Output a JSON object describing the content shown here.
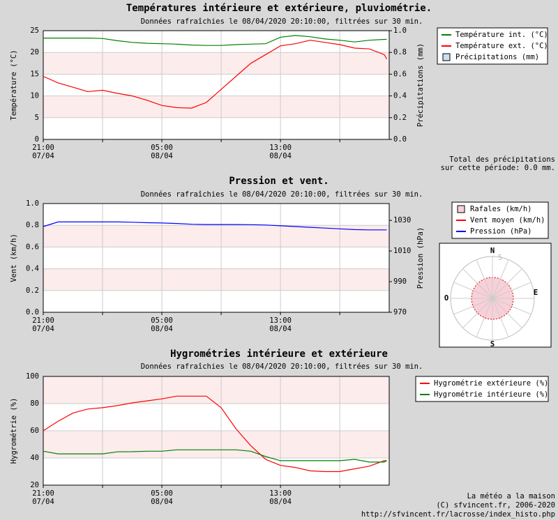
{
  "charts_page": {
    "precipitation_total": [
      "Total des précipitations",
      "sur cette période:   0.0 mm."
    ],
    "wind_rose": {
      "directions": [
        "N",
        "E",
        "S",
        "O"
      ],
      "ring_label": "5"
    },
    "footer": [
      "La météo a la maison",
      "(C) sfvincent.fr, 2006-2020",
      "http://sfvincent.fr/lacrosse/index_histo.php"
    ]
  },
  "chart_data": [
    {
      "type": "line",
      "title": "Températures intérieure et extérieure, pluviométrie.",
      "subtitle": "Données rafraîchies le 08/04/2020 20:10:00,  filtrées sur 30 min.",
      "ylabel": "Température (°C)",
      "y2label": "Précipitations (mm)",
      "x": [
        "07/04 21:00",
        "07/04 22:00",
        "07/04 23:00",
        "08/04 00:00",
        "08/04 01:00",
        "08/04 02:00",
        "08/04 03:00",
        "08/04 04:00",
        "08/04 05:00",
        "08/04 06:00",
        "08/04 07:00",
        "08/04 08:00",
        "08/04 09:00",
        "08/04 10:00",
        "08/04 11:00",
        "08/04 12:00",
        "08/04 13:00",
        "08/04 14:00",
        "08/04 15:00",
        "08/04 16:00",
        "08/04 17:00",
        "08/04 18:00",
        "08/04 19:00",
        "08/04 20:00",
        "08/04 20:10"
      ],
      "xlim": [
        "07/04 21:00",
        "08/04 20:20"
      ],
      "xticks": [
        {
          "value": "07/04 21:00",
          "label": "21:00",
          "date": "07/04"
        },
        {
          "value": "08/04 01:00"
        },
        {
          "value": "08/04 05:00",
          "label": "05:00",
          "date": "08/04"
        },
        {
          "value": "08/04 09:00"
        },
        {
          "value": "08/04 13:00",
          "label": "13:00",
          "date": "08/04"
        },
        {
          "value": "08/04 17:00"
        }
      ],
      "ylim": [
        0,
        25
      ],
      "yticks": [
        0,
        5,
        10,
        15,
        20,
        25
      ],
      "y2lim": [
        0,
        1
      ],
      "y2ticks": [
        {
          "value": 0,
          "label": "0.0"
        },
        0.2,
        0.4,
        0.6,
        0.8,
        {
          "value": 1,
          "label": "1.0"
        }
      ],
      "grid": true,
      "series": [
        {
          "name": "Température int. (°C)",
          "color": "#008000",
          "values": [
            23.3,
            23.3,
            23.3,
            23.3,
            23.2,
            22.7,
            22.3,
            22.1,
            22.0,
            21.9,
            21.7,
            21.6,
            21.6,
            21.8,
            21.9,
            22.0,
            23.5,
            23.9,
            23.6,
            23.1,
            22.8,
            22.4,
            22.8,
            23.0,
            23.0
          ]
        },
        {
          "name": "Température ext. (°C)",
          "color": "#ff0000",
          "values": [
            14.5,
            13,
            12,
            11,
            11.3,
            10.6,
            10,
            9,
            7.8,
            7.3,
            7.2,
            8.5,
            11.5,
            14.5,
            17.5,
            19.5,
            21.5,
            22,
            22.8,
            22.3,
            21.8,
            21,
            20.8,
            19.5,
            18.5
          ]
        },
        {
          "name": "Précipitations (mm)",
          "color": "#c8e0f0",
          "kind": "box",
          "axis": "y2"
        }
      ]
    },
    {
      "type": "line",
      "title": "Pression et vent.",
      "subtitle": "Données rafraîchies le 08/04/2020 20:10:00,  filtrées sur 30 min.",
      "ylabel": "Vent (km/h)",
      "y2label": "Pression (hPa)",
      "x": [
        "07/04 21:00",
        "07/04 22:00",
        "07/04 23:00",
        "08/04 00:00",
        "08/04 01:00",
        "08/04 02:00",
        "08/04 03:00",
        "08/04 04:00",
        "08/04 05:00",
        "08/04 06:00",
        "08/04 07:00",
        "08/04 08:00",
        "08/04 09:00",
        "08/04 10:00",
        "08/04 11:00",
        "08/04 12:00",
        "08/04 13:00",
        "08/04 14:00",
        "08/04 15:00",
        "08/04 16:00",
        "08/04 17:00",
        "08/04 18:00",
        "08/04 19:00",
        "08/04 20:00",
        "08/04 20:10"
      ],
      "xlim": [
        "07/04 21:00",
        "08/04 20:20"
      ],
      "xticks": [
        {
          "value": "07/04 21:00",
          "label": "21:00",
          "date": "07/04"
        },
        {
          "value": "08/04 01:00"
        },
        {
          "value": "08/04 05:00",
          "label": "05:00",
          "date": "08/04"
        },
        {
          "value": "08/04 09:00"
        },
        {
          "value": "08/04 13:00",
          "label": "13:00",
          "date": "08/04"
        },
        {
          "value": "08/04 17:00"
        }
      ],
      "ylim": [
        0,
        1
      ],
      "yticks": [
        {
          "value": 0,
          "label": "0.0"
        },
        0.2,
        0.4,
        0.6,
        0.8,
        {
          "value": 1,
          "label": "1.0"
        }
      ],
      "y2lim": [
        970,
        1041
      ],
      "y2ticks": [
        970,
        990,
        1010,
        1030
      ],
      "grid": true,
      "series": [
        {
          "name": "Rafales (km/h)",
          "color": "#f8d0d8",
          "kind": "box"
        },
        {
          "name": "Vent moyen (km/h)",
          "color": "#ff0000"
        },
        {
          "name": "Pression (hPa)",
          "color": "#0000ff",
          "axis": "y2",
          "values": [
            1026,
            1029,
            1029,
            1029,
            1029,
            1029,
            1028.8,
            1028.5,
            1028.3,
            1028,
            1027.5,
            1027.3,
            1027.3,
            1027.3,
            1027.2,
            1027,
            1026.5,
            1026,
            1025.5,
            1025,
            1024.5,
            1024,
            1023.8,
            1023.8,
            1023.8
          ]
        }
      ]
    },
    {
      "type": "line",
      "title": "Hygrométries intérieure et extérieure",
      "subtitle": "Données rafraîchies le 08/04/2020 20:10:00,  filtrées sur 30 min.",
      "ylabel": "Hygrométrie (%)",
      "x": [
        "07/04 21:00",
        "07/04 22:00",
        "07/04 23:00",
        "08/04 00:00",
        "08/04 01:00",
        "08/04 02:00",
        "08/04 03:00",
        "08/04 04:00",
        "08/04 05:00",
        "08/04 06:00",
        "08/04 07:00",
        "08/04 08:00",
        "08/04 09:00",
        "08/04 10:00",
        "08/04 11:00",
        "08/04 12:00",
        "08/04 13:00",
        "08/04 14:00",
        "08/04 15:00",
        "08/04 16:00",
        "08/04 17:00",
        "08/04 18:00",
        "08/04 19:00",
        "08/04 20:00",
        "08/04 20:10"
      ],
      "xlim": [
        "07/04 21:00",
        "08/04 20:20"
      ],
      "xticks": [
        {
          "value": "07/04 21:00",
          "label": "21:00",
          "date": "07/04"
        },
        {
          "value": "08/04 01:00"
        },
        {
          "value": "08/04 05:00",
          "label": "05:00",
          "date": "08/04"
        },
        {
          "value": "08/04 09:00"
        },
        {
          "value": "08/04 13:00",
          "label": "13:00",
          "date": "08/04"
        },
        {
          "value": "08/04 17:00"
        }
      ],
      "ylim": [
        20,
        100
      ],
      "yticks": [
        20,
        40,
        60,
        80,
        100
      ],
      "grid": true,
      "series": [
        {
          "name": "Hygrométrie extérieure (%)",
          "color": "#ff0000",
          "values": [
            60,
            67,
            73,
            76,
            77,
            78.5,
            80.5,
            82,
            83.5,
            85.5,
            85.5,
            85.5,
            77,
            61.5,
            49,
            39,
            34.5,
            33,
            30.5,
            30,
            30,
            32,
            34,
            38,
            38
          ]
        },
        {
          "name": "Hygrométrie intérieure (%)",
          "color": "#008000",
          "values": [
            45,
            43,
            43,
            43,
            43,
            44.5,
            44.6,
            45,
            45,
            46,
            46,
            46,
            46,
            46,
            45,
            41,
            38,
            38,
            38,
            38,
            38,
            39,
            37,
            37,
            38
          ]
        }
      ]
    }
  ]
}
